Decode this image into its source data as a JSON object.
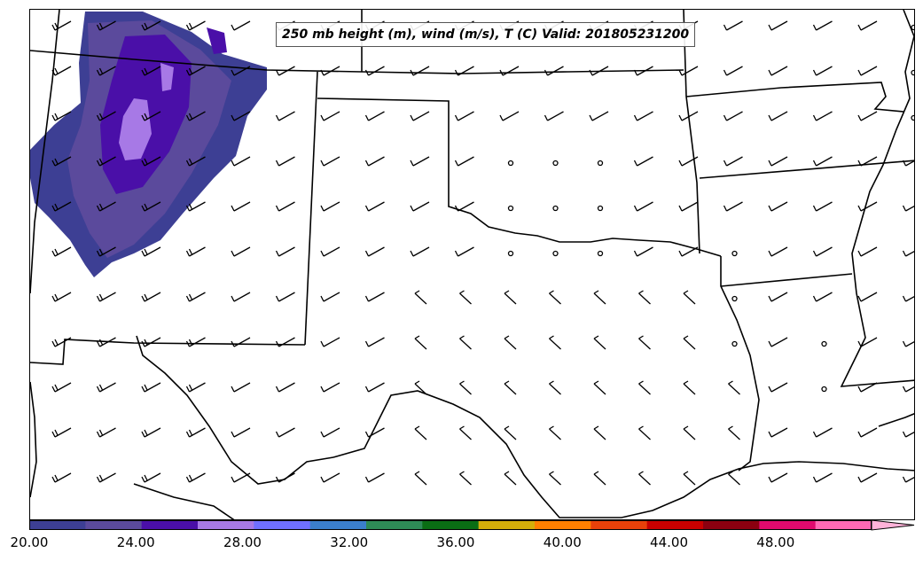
{
  "title": "250 mb height (m), wind (m/s), T (C) Valid: 201805231200",
  "colorbar": {
    "colors": [
      "#3d3f94",
      "#5b4a9c",
      "#4a0fa8",
      "#a779e6",
      "#7070ff",
      "#3b7fcc",
      "#2e8b57",
      "#0a6e14",
      "#d4af0a",
      "#ff8000",
      "#e8410a",
      "#c80000",
      "#8b0010",
      "#e00a6e",
      "#ff69b4",
      "#ffb3d9"
    ],
    "tick_labels": [
      "20.00",
      "24.00",
      "28.00",
      "32.00",
      "36.00",
      "40.00",
      "44.00",
      "48.00"
    ],
    "tick_values": [
      20,
      24,
      28,
      32,
      36,
      40,
      44,
      48
    ],
    "range": [
      20,
      51.6
    ],
    "extend": "max"
  },
  "colors": {
    "fill_dark": "#3d3f94",
    "fill_mid": "#5b4a9c",
    "fill_deep": "#4a0fa8",
    "fill_light": "#a779e6",
    "lines": "#000000"
  }
}
